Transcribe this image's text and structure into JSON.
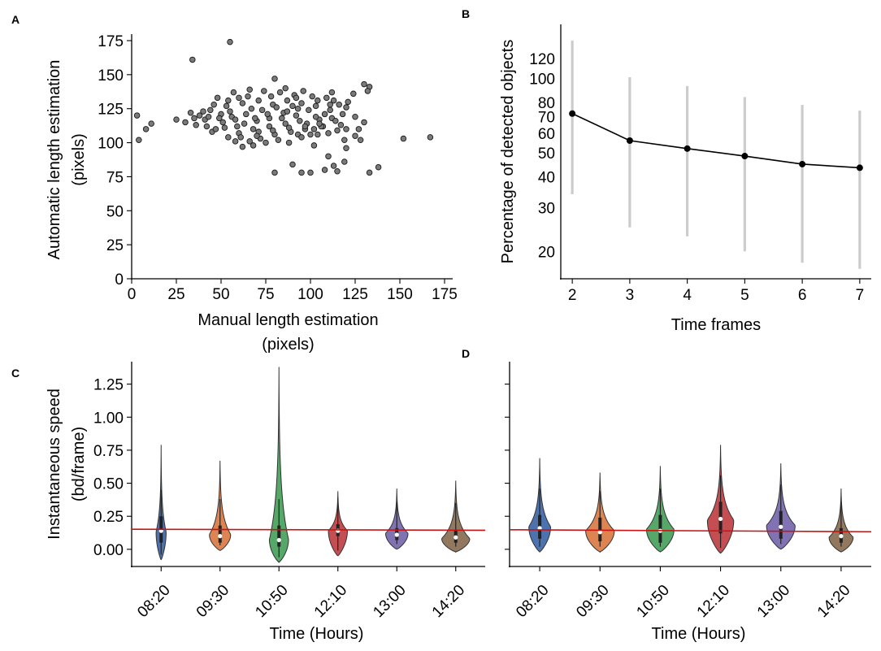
{
  "colors": {
    "scatter_fill": "#7a7a7a",
    "scatter_edge": "#1a1a1a",
    "errorbar": "#cccccc",
    "line": "#000000",
    "trend": "#c81414",
    "violins": [
      "#4c72b0",
      "#dd8452",
      "#55a868",
      "#c44e52",
      "#8172b3",
      "#937860"
    ]
  },
  "panels": {
    "a": {
      "letter": "A"
    },
    "b": {
      "letter": "B"
    },
    "c": {
      "letter": "C"
    },
    "d": {
      "letter": "D"
    }
  },
  "chart_data": [
    {
      "id": "A",
      "type": "scatter",
      "title": "",
      "xlabel_lines": [
        "Manual length estimation",
        "(pixels)"
      ],
      "ylabel_lines": [
        "Automatic length estimation",
        "(pixels)"
      ],
      "xlim": [
        0,
        175
      ],
      "ylim": [
        0,
        175
      ],
      "xticks": [
        0,
        25,
        50,
        75,
        100,
        125,
        150,
        175
      ],
      "yticks": [
        0,
        25,
        50,
        75,
        100,
        125,
        150,
        175
      ],
      "xtick_labels": [
        "0",
        "25",
        "50",
        "75",
        "100",
        "125",
        "150",
        "175"
      ],
      "ytick_labels": [
        "0",
        "25",
        "50",
        "75",
        "100",
        "125",
        "150",
        "175"
      ],
      "points": [
        [
          3,
          120
        ],
        [
          4,
          102
        ],
        [
          8,
          110
        ],
        [
          11,
          114
        ],
        [
          25,
          117
        ],
        [
          34,
          161
        ],
        [
          55,
          174
        ],
        [
          80,
          147
        ],
        [
          80,
          78
        ],
        [
          90,
          84
        ],
        [
          95,
          78
        ],
        [
          100,
          78
        ],
        [
          108,
          80
        ],
        [
          113,
          83
        ],
        [
          115,
          79
        ],
        [
          133,
          78
        ],
        [
          138,
          82
        ],
        [
          130,
          115
        ],
        [
          125,
          119
        ],
        [
          104,
          106
        ],
        [
          102,
          98
        ],
        [
          107,
          112
        ],
        [
          120,
          110
        ],
        [
          125,
          105
        ],
        [
          128,
          102
        ],
        [
          133,
          141
        ],
        [
          130,
          143
        ],
        [
          152,
          103
        ],
        [
          167,
          104
        ],
        [
          119,
          102
        ],
        [
          120,
          96
        ],
        [
          119,
          86
        ],
        [
          110,
          90
        ],
        [
          93,
          106
        ],
        [
          72,
          103
        ],
        [
          66,
          101
        ],
        [
          60,
          107
        ],
        [
          120,
          126
        ],
        [
          127,
          110
        ],
        [
          132,
          138
        ],
        [
          124,
          136
        ],
        [
          86,
          140
        ],
        [
          45,
          108
        ],
        [
          38,
          120
        ],
        [
          33,
          122
        ],
        [
          30,
          115
        ],
        [
          36,
          113
        ],
        [
          41,
          117
        ],
        [
          47,
          110
        ],
        [
          54,
          104
        ],
        [
          58,
          101
        ],
        [
          62,
          97
        ],
        [
          68,
          98
        ],
        [
          75,
          100
        ],
        [
          82,
          102
        ],
        [
          88,
          100
        ],
        [
          95,
          104
        ],
        [
          100,
          106
        ],
        [
          110,
          107
        ],
        [
          115,
          109
        ],
        [
          105,
          117
        ],
        [
          98,
          114
        ],
        [
          92,
          120
        ],
        [
          85,
          122
        ],
        [
          77,
          118
        ],
        [
          70,
          116
        ],
        [
          63,
          114
        ],
        [
          56,
          119
        ],
        [
          50,
          121
        ],
        [
          44,
          124
        ],
        [
          48,
          133
        ],
        [
          57,
          137
        ],
        [
          66,
          139
        ],
        [
          74,
          138
        ],
        [
          83,
          137
        ],
        [
          91,
          135
        ],
        [
          101,
          134
        ],
        [
          109,
          133
        ],
        [
          116,
          128
        ],
        [
          121,
          130
        ],
        [
          118,
          121
        ],
        [
          111,
          124
        ],
        [
          103,
          127
        ],
        [
          95,
          129
        ],
        [
          87,
          131
        ],
        [
          79,
          128
        ],
        [
          71,
          131
        ],
        [
          62,
          129
        ],
        [
          53,
          127
        ],
        [
          46,
          128
        ],
        [
          40,
          123
        ],
        [
          35,
          118
        ],
        [
          42,
          112
        ],
        [
          51,
          115
        ],
        [
          59,
          112
        ],
        [
          68,
          110
        ],
        [
          77,
          112
        ],
        [
          86,
          114
        ],
        [
          94,
          116
        ],
        [
          103,
          119
        ],
        [
          112,
          118
        ],
        [
          117,
          113
        ],
        [
          106,
          112
        ],
        [
          97,
          110
        ],
        [
          89,
          108
        ],
        [
          80,
          106
        ],
        [
          71,
          108
        ],
        [
          64,
          121
        ],
        [
          73,
          124
        ],
        [
          81,
          126
        ],
        [
          90,
          127
        ],
        [
          99,
          124
        ],
        [
          108,
          121
        ],
        [
          114,
          116
        ],
        [
          102,
          110
        ],
        [
          84,
          118
        ],
        [
          67,
          125
        ],
        [
          55,
          123
        ],
        [
          60,
          133
        ],
        [
          78,
          134
        ],
        [
          96,
          138
        ],
        [
          112,
          137
        ],
        [
          113,
          131
        ],
        [
          76,
          121
        ],
        [
          69,
          118
        ],
        [
          87,
          123
        ],
        [
          93,
          125
        ],
        [
          58,
          117
        ],
        [
          49,
          118
        ],
        [
          43,
          119
        ],
        [
          52,
          111
        ],
        [
          61,
          104
        ],
        [
          70,
          105
        ],
        [
          79,
          109
        ],
        [
          88,
          111
        ],
        [
          97,
          112
        ],
        [
          105,
          114
        ],
        [
          111,
          128
        ],
        [
          104,
          131
        ],
        [
          92,
          133
        ],
        [
          65,
          134
        ],
        [
          54,
          131
        ]
      ]
    },
    {
      "id": "B",
      "type": "line",
      "title": "",
      "xlabel": "Time frames",
      "ylabel": "Percentage of detected objects",
      "yscale": "log",
      "xlim": [
        1.8,
        7.2
      ],
      "ylim": [
        15.5,
        165
      ],
      "x": [
        2,
        3,
        4,
        5,
        6,
        7
      ],
      "y": [
        72,
        56,
        52,
        48.5,
        45,
        43.5
      ],
      "err_low": [
        34,
        25,
        23,
        20,
        18,
        17
      ],
      "err_high": [
        142,
        101,
        93,
        84,
        78,
        74
      ],
      "xticks": [
        2,
        3,
        4,
        5,
        6,
        7
      ],
      "xtick_labels": [
        "2",
        "3",
        "4",
        "5",
        "6",
        "7"
      ],
      "yticks": [
        20,
        30,
        40,
        50,
        60,
        70,
        80,
        100,
        120
      ],
      "ytick_labels": [
        "20",
        "30",
        "40",
        "50",
        "60",
        "70",
        "80",
        "100",
        "120"
      ]
    },
    {
      "id": "C",
      "type": "violin",
      "title": "",
      "xlabel": "Time (Hours)",
      "ylabel_lines": [
        "Instantaneous speed",
        "(bd/frame)"
      ],
      "ylim": [
        -0.13,
        1.42
      ],
      "yticks": [
        0.0,
        0.25,
        0.5,
        0.75,
        1.0,
        1.25
      ],
      "ytick_labels": [
        "0.00",
        "0.25",
        "0.50",
        "0.75",
        "1.00",
        "1.25"
      ],
      "categories": [
        "08:20",
        "09:30",
        "10:50",
        "12:10",
        "13:00",
        "14:20"
      ],
      "violins": [
        {
          "min": -0.08,
          "max": 0.79,
          "median": 0.14,
          "q1": 0.05,
          "q3": 0.25,
          "max_width": 0.18,
          "bulge_at": 0.13
        },
        {
          "min": -0.01,
          "max": 0.67,
          "median": 0.1,
          "q1": 0.05,
          "q3": 0.18,
          "max_width": 0.38,
          "bulge_at": 0.11
        },
        {
          "min": -0.1,
          "max": 1.38,
          "median": 0.07,
          "q1": 0.02,
          "q3": 0.18,
          "max_width": 0.34,
          "bulge_at": 0.07
        },
        {
          "min": -0.05,
          "max": 0.44,
          "median": 0.14,
          "q1": 0.1,
          "q3": 0.19,
          "max_width": 0.34,
          "bulge_at": 0.14
        },
        {
          "min": 0.0,
          "max": 0.46,
          "median": 0.11,
          "q1": 0.07,
          "q3": 0.16,
          "max_width": 0.4,
          "bulge_at": 0.12
        },
        {
          "min": -0.02,
          "max": 0.52,
          "median": 0.09,
          "q1": 0.05,
          "q3": 0.15,
          "max_width": 0.5,
          "bulge_at": 0.08
        }
      ],
      "trend": {
        "y_start": 0.152,
        "y_end": 0.144
      }
    },
    {
      "id": "D",
      "type": "violin",
      "title": "",
      "xlabel": "Time (Hours)",
      "ylabel_lines": [],
      "ylim": [
        -0.13,
        1.42
      ],
      "yticks": [
        0.0,
        0.25,
        0.5,
        0.75,
        1.0,
        1.25
      ],
      "ytick_labels": [],
      "categories": [
        "08:20",
        "09:30",
        "10:50",
        "12:10",
        "13:00",
        "14:20"
      ],
      "violins": [
        {
          "min": -0.02,
          "max": 0.69,
          "median": 0.16,
          "q1": 0.08,
          "q3": 0.26,
          "max_width": 0.38,
          "bulge_at": 0.17
        },
        {
          "min": -0.02,
          "max": 0.58,
          "median": 0.13,
          "q1": 0.06,
          "q3": 0.24,
          "max_width": 0.5,
          "bulge_at": 0.14
        },
        {
          "min": -0.02,
          "max": 0.63,
          "median": 0.14,
          "q1": 0.05,
          "q3": 0.26,
          "max_width": 0.48,
          "bulge_at": 0.15
        },
        {
          "min": -0.03,
          "max": 0.79,
          "median": 0.23,
          "q1": 0.12,
          "q3": 0.36,
          "max_width": 0.46,
          "bulge_at": 0.22
        },
        {
          "min": 0.0,
          "max": 0.65,
          "median": 0.17,
          "q1": 0.08,
          "q3": 0.29,
          "max_width": 0.5,
          "bulge_at": 0.18
        },
        {
          "min": -0.02,
          "max": 0.46,
          "median": 0.1,
          "q1": 0.05,
          "q3": 0.16,
          "max_width": 0.42,
          "bulge_at": 0.09
        }
      ],
      "trend": {
        "y_start": 0.148,
        "y_end": 0.133
      }
    }
  ]
}
